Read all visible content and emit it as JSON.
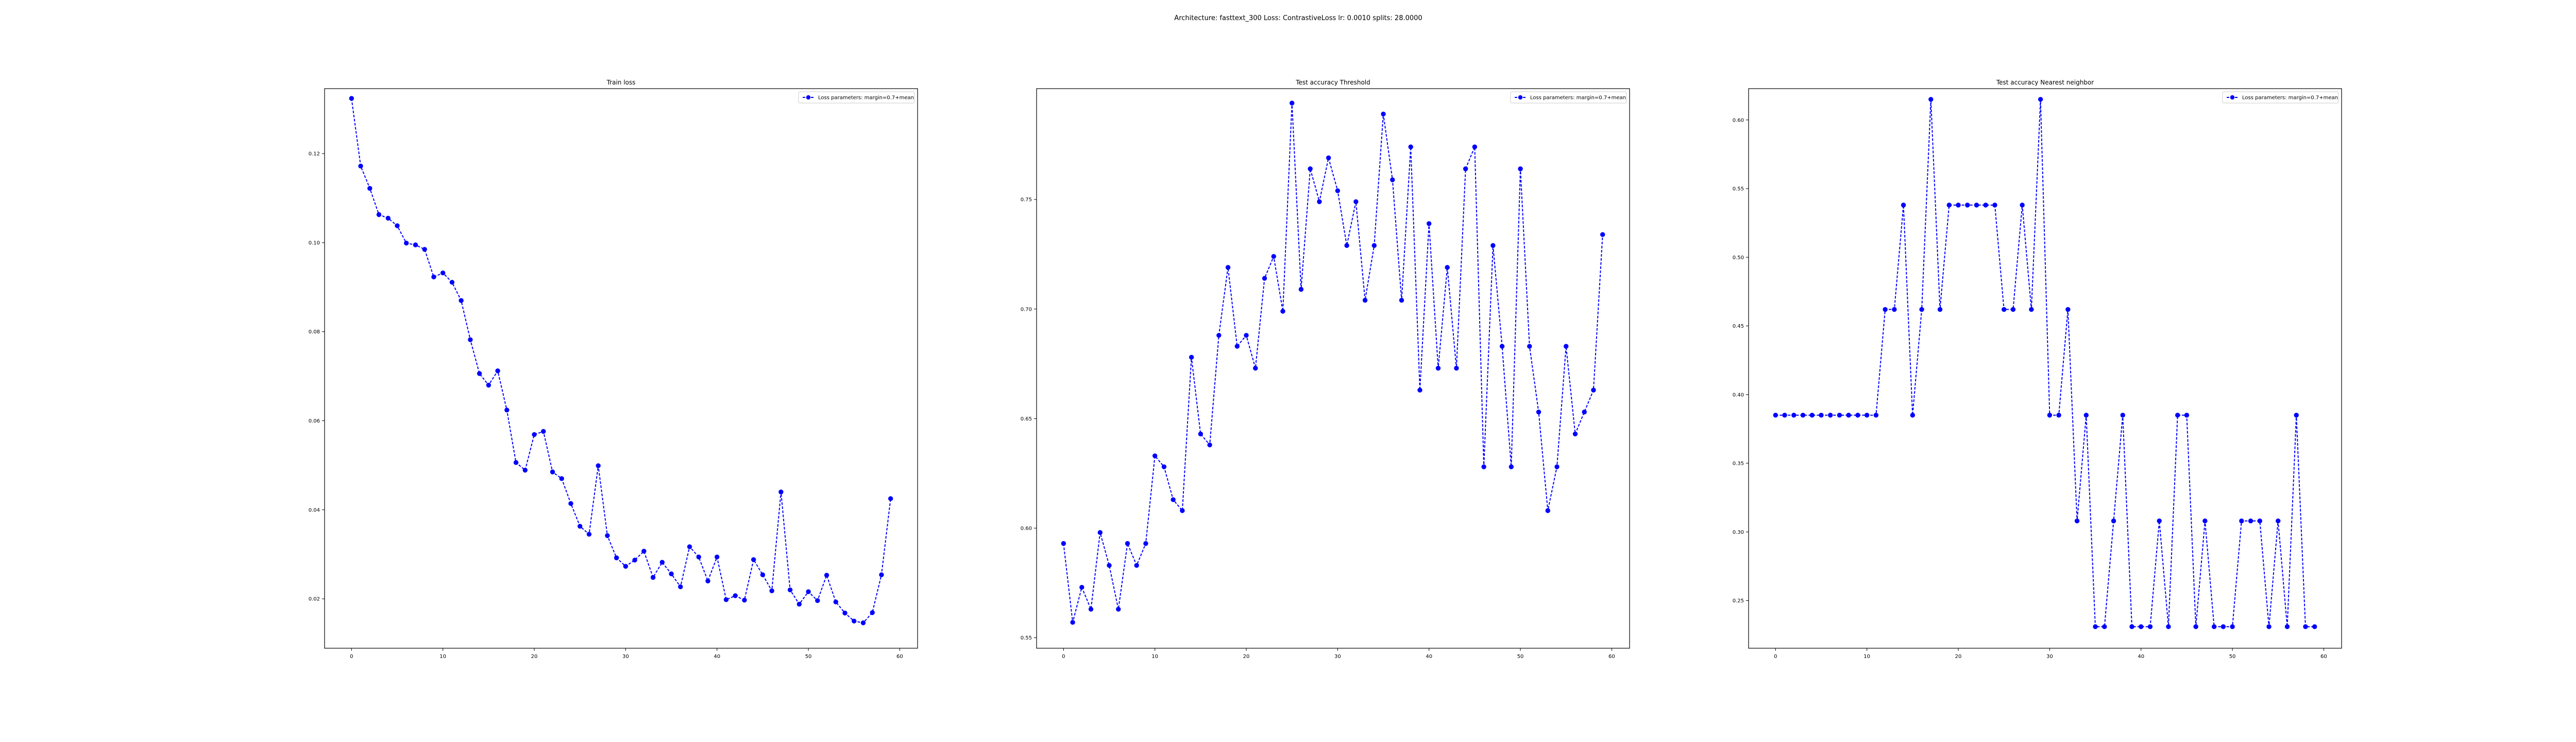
{
  "suptitle": "Architecture: fasttext_300 Loss: ContrastiveLoss lr: 0.0010 splits: 28.0000",
  "colors": {
    "series": "#0000ff",
    "axes": "#000000"
  },
  "chart_data": [
    {
      "type": "line",
      "title": "Train loss",
      "legend": {
        "placement": "top-right",
        "label": "Loss parameters: margin=0.7+mean"
      },
      "xlim": [
        -2.95,
        61.95
      ],
      "ylim": [
        0.0089,
        0.1346
      ],
      "xticks": [
        0,
        10,
        20,
        30,
        40,
        50,
        60
      ],
      "yticks": [
        0.02,
        0.04,
        0.06,
        0.08,
        0.1,
        0.12
      ],
      "ytick_labels": [
        "0.02",
        "0.04",
        "0.06",
        "0.08",
        "0.10",
        "0.12"
      ],
      "grid": false,
      "x": [
        0,
        1,
        2,
        3,
        4,
        5,
        6,
        7,
        8,
        9,
        10,
        11,
        12,
        13,
        14,
        15,
        16,
        17,
        18,
        19,
        20,
        21,
        22,
        23,
        24,
        25,
        26,
        27,
        28,
        29,
        30,
        31,
        32,
        33,
        34,
        35,
        36,
        37,
        38,
        39,
        40,
        41,
        42,
        43,
        44,
        45,
        46,
        47,
        48,
        49,
        50,
        51,
        52,
        53,
        54,
        55,
        56,
        57,
        58,
        59
      ],
      "y": [
        0.1324,
        0.1172,
        0.1122,
        0.1063,
        0.1055,
        0.1038,
        0.0999,
        0.0995,
        0.0985,
        0.0923,
        0.0932,
        0.0911,
        0.087,
        0.0782,
        0.0706,
        0.068,
        0.0712,
        0.0624,
        0.0506,
        0.0489,
        0.0569,
        0.0576,
        0.0485,
        0.047,
        0.0414,
        0.0363,
        0.0345,
        0.0499,
        0.0342,
        0.0292,
        0.0273,
        0.0287,
        0.0307,
        0.0248,
        0.0282,
        0.0256,
        0.0227,
        0.0317,
        0.0294,
        0.024,
        0.0294,
        0.0198,
        0.0207,
        0.0197,
        0.0288,
        0.0254,
        0.0218,
        0.044,
        0.022,
        0.0188,
        0.0216,
        0.0196,
        0.0253,
        0.0193,
        0.0168,
        0.015,
        0.0146,
        0.0169,
        0.0254,
        0.0425
      ]
    },
    {
      "type": "line",
      "title": "Test accuracy Threshold",
      "legend": {
        "placement": "top-right",
        "label": "Loss parameters: margin=0.7+mean"
      },
      "xlim": [
        -2.95,
        61.95
      ],
      "ylim": [
        0.5452,
        0.8006
      ],
      "xticks": [
        0,
        10,
        20,
        30,
        40,
        50,
        60
      ],
      "yticks": [
        0.55,
        0.6,
        0.65,
        0.7,
        0.75
      ],
      "ytick_labels": [
        "0.55",
        "0.60",
        "0.65",
        "0.70",
        "0.75"
      ],
      "grid": false,
      "x": [
        0,
        1,
        2,
        3,
        4,
        5,
        6,
        7,
        8,
        9,
        10,
        11,
        12,
        13,
        14,
        15,
        16,
        17,
        18,
        19,
        20,
        21,
        22,
        23,
        24,
        25,
        26,
        27,
        28,
        29,
        30,
        31,
        32,
        33,
        34,
        35,
        36,
        37,
        38,
        39,
        40,
        41,
        42,
        43,
        44,
        45,
        46,
        47,
        48,
        49,
        50,
        51,
        52,
        53,
        54,
        55,
        56,
        57,
        58,
        59
      ],
      "y": [
        0.593,
        0.557,
        0.573,
        0.563,
        0.598,
        0.583,
        0.563,
        0.593,
        0.583,
        0.593,
        0.633,
        0.628,
        0.613,
        0.608,
        0.678,
        0.643,
        0.638,
        0.688,
        0.719,
        0.683,
        0.688,
        0.673,
        0.714,
        0.724,
        0.699,
        0.794,
        0.709,
        0.764,
        0.749,
        0.769,
        0.754,
        0.729,
        0.749,
        0.704,
        0.729,
        0.789,
        0.759,
        0.704,
        0.774,
        0.663,
        0.739,
        0.673,
        0.719,
        0.673,
        0.764,
        0.774,
        0.628,
        0.729,
        0.683,
        0.628,
        0.764,
        0.683,
        0.653,
        0.608,
        0.628,
        0.683,
        0.643,
        0.653,
        0.663,
        0.734
      ]
    },
    {
      "type": "line",
      "title": "Test accuracy Nearest neighbor",
      "legend": {
        "placement": "top-right",
        "label": "Loss parameters: margin=0.7+mean"
      },
      "xlim": [
        -2.95,
        61.95
      ],
      "ylim": [
        0.2153,
        0.6228
      ],
      "xticks": [
        0,
        10,
        20,
        30,
        40,
        50,
        60
      ],
      "yticks": [
        0.25,
        0.3,
        0.35,
        0.4,
        0.45,
        0.5,
        0.55,
        0.6
      ],
      "ytick_labels": [
        "0.25",
        "0.30",
        "0.35",
        "0.40",
        "0.45",
        "0.50",
        "0.55",
        "0.60"
      ],
      "grid": false,
      "x": [
        0,
        1,
        2,
        3,
        4,
        5,
        6,
        7,
        8,
        9,
        10,
        11,
        12,
        13,
        14,
        15,
        16,
        17,
        18,
        19,
        20,
        21,
        22,
        23,
        24,
        25,
        26,
        27,
        28,
        29,
        30,
        31,
        32,
        33,
        34,
        35,
        36,
        37,
        38,
        39,
        40,
        41,
        42,
        43,
        44,
        45,
        46,
        47,
        48,
        49,
        50,
        51,
        52,
        53,
        54,
        55,
        56,
        57,
        58,
        59
      ],
      "y": [
        0.385,
        0.385,
        0.385,
        0.385,
        0.385,
        0.385,
        0.385,
        0.385,
        0.385,
        0.385,
        0.385,
        0.385,
        0.462,
        0.462,
        0.538,
        0.385,
        0.462,
        0.615,
        0.462,
        0.538,
        0.538,
        0.538,
        0.538,
        0.538,
        0.538,
        0.462,
        0.462,
        0.538,
        0.462,
        0.615,
        0.385,
        0.385,
        0.462,
        0.308,
        0.385,
        0.231,
        0.231,
        0.308,
        0.385,
        0.231,
        0.231,
        0.231,
        0.308,
        0.231,
        0.385,
        0.385,
        0.231,
        0.308,
        0.231,
        0.231,
        0.231,
        0.308,
        0.308,
        0.308,
        0.231,
        0.308,
        0.231,
        0.385,
        0.231,
        0.231
      ]
    }
  ]
}
